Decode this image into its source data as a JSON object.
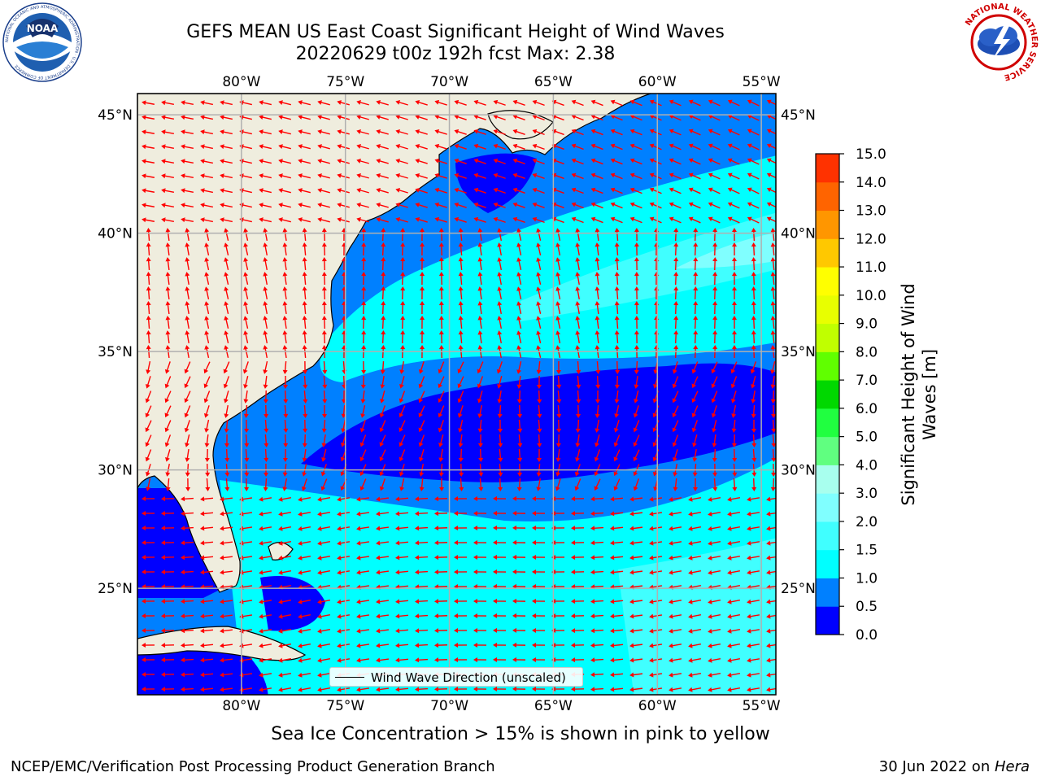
{
  "title_line1": "GEFS MEAN US East Coast Significant Height of Wind Waves",
  "title_line2": "20220629 t00z 192h fcst   Max: 2.38",
  "caption": "Sea Ice Concentration > 15% is shown in pink to yellow",
  "footer_left": "NCEP/EMC/Verification Post Processing Product Generation Branch",
  "footer_right_date": "30 Jun 2022 on ",
  "footer_right_system": "Hera",
  "legend_label": "Wind Wave Direction (unscaled)",
  "logos": {
    "noaa_text": "NOAA",
    "noaa_ring": "NATIONAL OCEANIC AND ATMOSPHERIC ADMINISTRATION · U.S. DEPARTMENT OF COMMERCE",
    "nws_ring": "NATIONAL WEATHER SERVICE"
  },
  "colors": {
    "land": "#efedde",
    "arrow": "#ff0000",
    "grid": "#b0b0b0"
  },
  "map": {
    "lon_range": [
      -85,
      -54.3
    ],
    "lat_range": [
      20.5,
      45.9
    ],
    "lon_ticks": [
      -80,
      -75,
      -70,
      -65,
      -60,
      -55
    ],
    "lat_ticks": [
      45,
      40,
      35,
      30,
      25
    ],
    "lon_labels": [
      "80°W",
      "75°W",
      "70°W",
      "65°W",
      "60°W",
      "55°W"
    ],
    "lat_labels": [
      "45°N",
      "40°N",
      "35°N",
      "30°N",
      "25°N"
    ]
  },
  "colorbar": {
    "label_line1": "Significant Height of Wind",
    "label_line2": "Waves [m]",
    "levels": [
      0.0,
      0.5,
      1.0,
      1.5,
      2.0,
      3.0,
      4.0,
      5.0,
      6.0,
      7.0,
      8.0,
      9.0,
      10.0,
      11.0,
      12.0,
      13.0,
      14.0,
      15.0
    ],
    "tick_labels": [
      "0.0",
      "0.5",
      "1.0",
      "1.5",
      "2.0",
      "3.0",
      "4.0",
      "5.0",
      "6.0",
      "7.0",
      "8.0",
      "9.0",
      "10.0",
      "11.0",
      "12.0",
      "13.0",
      "14.0",
      "15.0"
    ],
    "colors": [
      "#0000ff",
      "#0080ff",
      "#00ffff",
      "#40ffff",
      "#80ffff",
      "#a8ffee",
      "#60ff80",
      "#20ff40",
      "#00d800",
      "#60ff00",
      "#c0ff00",
      "#e8ff00",
      "#ffff00",
      "#ffc800",
      "#ff9600",
      "#ff6400",
      "#ff3200",
      "#ff0000"
    ]
  }
}
